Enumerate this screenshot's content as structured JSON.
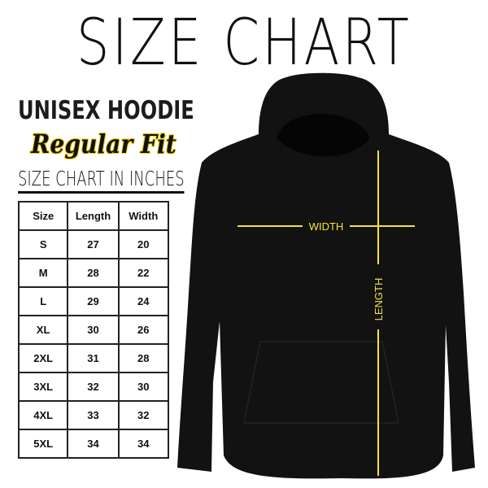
{
  "title": "SIZE CHART",
  "product": "UNISEX HOODIE",
  "fit": "Regular Fit",
  "table_caption": "SIZE CHART IN INCHES",
  "table": {
    "headers": [
      "Size",
      "Length",
      "Width"
    ],
    "rows": [
      [
        "S",
        "27",
        "20"
      ],
      [
        "M",
        "28",
        "22"
      ],
      [
        "L",
        "29",
        "24"
      ],
      [
        "XL",
        "30",
        "26"
      ],
      [
        "2XL",
        "31",
        "28"
      ],
      [
        "3XL",
        "32",
        "30"
      ],
      [
        "4XL",
        "33",
        "32"
      ],
      [
        "5XL",
        "34",
        "34"
      ]
    ]
  },
  "diagram": {
    "width_label": "WIDTH",
    "length_label": "LENGTH",
    "line_color": "#f5e33a",
    "garment_color": "#111111"
  }
}
